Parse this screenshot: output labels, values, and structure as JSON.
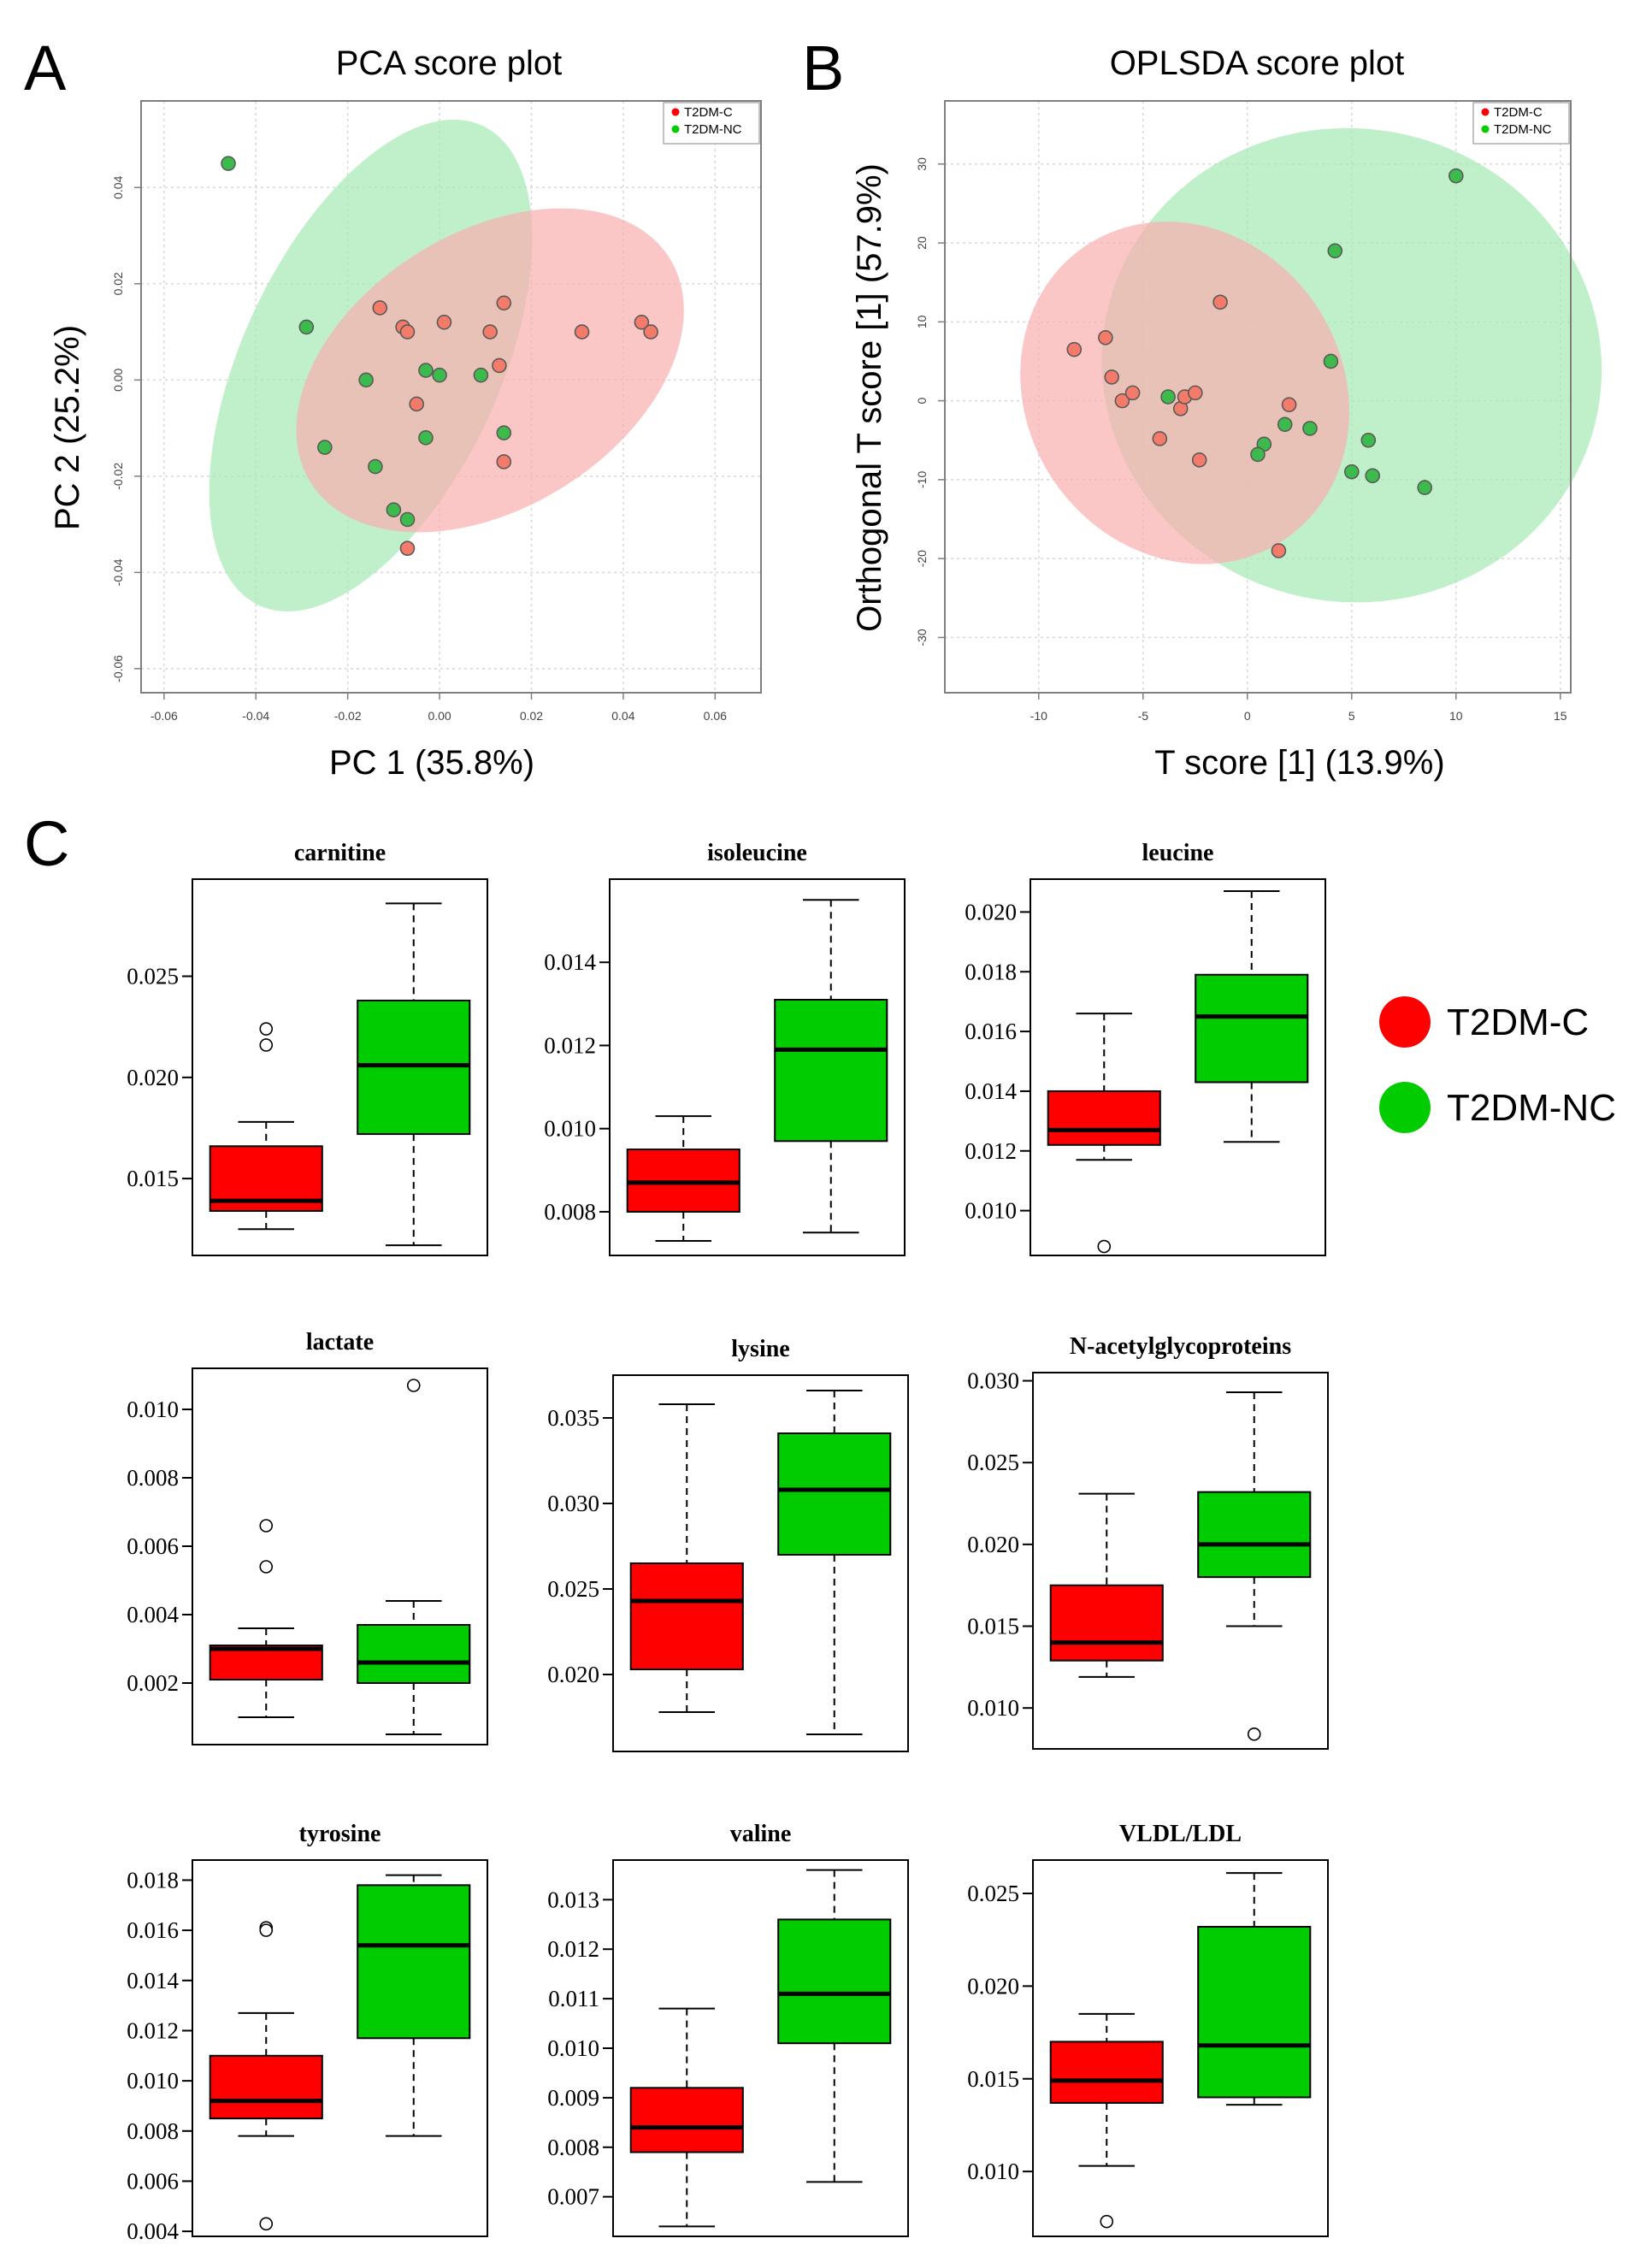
{
  "colors": {
    "c_group": "#ff0000",
    "nc_group": "#00cc00",
    "c_point": "#f47a6a",
    "nc_point": "#3cbb4c",
    "c_ellipse": "#f8b0b0",
    "nc_ellipse": "#a6eab6"
  },
  "groups": [
    "T2DM-C",
    "T2DM-NC"
  ],
  "panel_letters": [
    "A",
    "B",
    "C"
  ],
  "chart_data": [
    {
      "type": "scatter",
      "title": "PCA score plot",
      "xlabel": "PC 1 (35.8%)",
      "ylabel": "PC 2 (25.2%)",
      "xlim": [
        -0.065,
        0.07
      ],
      "ylim": [
        -0.065,
        0.058
      ],
      "xticks": [
        -0.06,
        -0.04,
        -0.02,
        0.0,
        0.02,
        0.04,
        0.06
      ],
      "xtick_labels": [
        "-0.06",
        "-0.04",
        "-0.02",
        "0.00",
        "0.02",
        "0.04",
        "0.06"
      ],
      "yticks": [
        -0.06,
        -0.04,
        -0.02,
        0.0,
        0.02,
        0.04
      ],
      "ytick_labels": [
        "-0.06",
        "-0.04",
        "-0.02",
        "0.00",
        "0.02",
        "0.04"
      ],
      "grid": true,
      "legend": [
        "T2DM-C",
        "T2DM-NC"
      ],
      "legend_position": "top-right",
      "ellipses": [
        {
          "group": "T2DM-NC",
          "cx": -0.015,
          "cy": 0.003,
          "rx": 0.028,
          "ry": 0.055,
          "angle": 25
        },
        {
          "group": "T2DM-C",
          "cx": 0.011,
          "cy": 0.002,
          "rx": 0.03,
          "ry": 0.044,
          "angle": 58
        }
      ],
      "series": [
        {
          "name": "T2DM-C",
          "points": [
            [
              -0.013,
              0.015
            ],
            [
              -0.008,
              0.011
            ],
            [
              -0.007,
              0.01
            ],
            [
              0.001,
              0.012
            ],
            [
              0.014,
              0.016
            ],
            [
              0.011,
              0.01
            ],
            [
              0.031,
              0.01
            ],
            [
              0.044,
              0.012
            ],
            [
              0.046,
              0.01
            ],
            [
              0.013,
              0.003
            ],
            [
              -0.005,
              -0.005
            ],
            [
              0.014,
              -0.017
            ],
            [
              -0.007,
              -0.035
            ]
          ]
        },
        {
          "name": "T2DM-NC",
          "points": [
            [
              -0.046,
              0.045
            ],
            [
              -0.029,
              0.011
            ],
            [
              -0.016,
              0.0
            ],
            [
              -0.003,
              0.002
            ],
            [
              0.0,
              0.001
            ],
            [
              0.009,
              0.001
            ],
            [
              -0.003,
              -0.012
            ],
            [
              0.014,
              -0.011
            ],
            [
              -0.025,
              -0.014
            ],
            [
              -0.014,
              -0.018
            ],
            [
              -0.01,
              -0.027
            ],
            [
              -0.007,
              -0.029
            ]
          ]
        }
      ]
    },
    {
      "type": "scatter",
      "title": "OPLSDA score plot",
      "xlabel": "T score [1] (13.9%)",
      "ylabel": "Orthogonal T score [1] (57.9%)",
      "xlim": [
        -14.5,
        15.5
      ],
      "ylim": [
        -37,
        38
      ],
      "xticks": [
        -10,
        -5,
        0,
        5,
        10,
        15
      ],
      "xtick_labels": [
        "-10",
        "-5",
        "0",
        "5",
        "10",
        "15"
      ],
      "yticks": [
        -30,
        -20,
        -10,
        0,
        10,
        20,
        30
      ],
      "ytick_labels": [
        "-30",
        "-20",
        "-10",
        "0",
        "10",
        "20",
        "30"
      ],
      "grid": true,
      "legend": [
        "T2DM-C",
        "T2DM-NC"
      ],
      "legend_position": "top-right",
      "ellipses": [
        {
          "group": "T2DM-NC",
          "cx": 5.0,
          "cy": 4.5,
          "rx": 12.0,
          "ry": 30.0,
          "angle": 10
        },
        {
          "group": "T2DM-C",
          "cx": -3.0,
          "cy": 1.0,
          "rx": 8.5,
          "ry": 20.0,
          "angle": 55
        }
      ],
      "series": [
        {
          "name": "T2DM-C",
          "points": [
            [
              -8.3,
              6.5
            ],
            [
              -6.8,
              8.0
            ],
            [
              -6.5,
              3.0
            ],
            [
              -6.0,
              0.0
            ],
            [
              -5.5,
              1.0
            ],
            [
              -4.2,
              -4.8
            ],
            [
              -3.2,
              -1.0
            ],
            [
              -3.0,
              0.5
            ],
            [
              -2.5,
              1.0
            ],
            [
              -2.3,
              -7.5
            ],
            [
              -1.3,
              12.5
            ],
            [
              2.0,
              -0.5
            ],
            [
              1.5,
              -19.0
            ]
          ]
        },
        {
          "name": "T2DM-NC",
          "points": [
            [
              -3.8,
              0.5
            ],
            [
              1.8,
              -3.0
            ],
            [
              3.0,
              -3.5
            ],
            [
              0.8,
              -5.5
            ],
            [
              0.5,
              -6.8
            ],
            [
              4.2,
              19.0
            ],
            [
              4.0,
              5.0
            ],
            [
              5.8,
              -5.0
            ],
            [
              5.0,
              -9.0
            ],
            [
              6.0,
              -9.5
            ],
            [
              8.5,
              -11.0
            ],
            [
              10.0,
              28.5
            ]
          ]
        }
      ]
    },
    {
      "type": "box",
      "title": "carnitine",
      "ylim": [
        0.0112,
        0.0298
      ],
      "yticks": [
        0.015,
        0.02,
        0.025
      ],
      "ytick_labels": [
        "0.015",
        "0.020",
        "0.025"
      ],
      "boxes": [
        {
          "group": "T2DM-C",
          "whisker_low": 0.0125,
          "q1": 0.0134,
          "median": 0.0139,
          "q3": 0.0166,
          "whisker_high": 0.0178,
          "outliers": [
            0.0216,
            0.0224
          ]
        },
        {
          "group": "T2DM-NC",
          "whisker_low": 0.0117,
          "q1": 0.0172,
          "median": 0.0206,
          "q3": 0.0238,
          "whisker_high": 0.0286,
          "outliers": []
        }
      ]
    },
    {
      "type": "box",
      "title": "isoleucine",
      "ylim": [
        0.00695,
        0.016
      ],
      "yticks": [
        0.008,
        0.01,
        0.012,
        0.014
      ],
      "ytick_labels": [
        "0.008",
        "0.010",
        "0.012",
        "0.014"
      ],
      "boxes": [
        {
          "group": "T2DM-C",
          "whisker_low": 0.0073,
          "q1": 0.008,
          "median": 0.0087,
          "q3": 0.0095,
          "whisker_high": 0.0103,
          "outliers": []
        },
        {
          "group": "T2DM-NC",
          "whisker_low": 0.0075,
          "q1": 0.0097,
          "median": 0.0119,
          "q3": 0.0131,
          "whisker_high": 0.0155,
          "outliers": []
        }
      ]
    },
    {
      "type": "box",
      "title": "leucine",
      "ylim": [
        0.0085,
        0.0211
      ],
      "yticks": [
        0.01,
        0.012,
        0.014,
        0.016,
        0.018,
        0.02
      ],
      "ytick_labels": [
        "0.010",
        "0.012",
        "0.014",
        "0.016",
        "0.018",
        "0.020"
      ],
      "boxes": [
        {
          "group": "T2DM-C",
          "whisker_low": 0.0117,
          "q1": 0.0122,
          "median": 0.0127,
          "q3": 0.014,
          "whisker_high": 0.0166,
          "outliers": [
            0.0088
          ]
        },
        {
          "group": "T2DM-NC",
          "whisker_low": 0.0123,
          "q1": 0.0143,
          "median": 0.0165,
          "q3": 0.0179,
          "whisker_high": 0.0207,
          "outliers": []
        }
      ]
    },
    {
      "type": "box",
      "title": "lactate",
      "ylim": [
        0.0002,
        0.0112
      ],
      "yticks": [
        0.002,
        0.004,
        0.006,
        0.008,
        0.01
      ],
      "ytick_labels": [
        "0.002",
        "0.004",
        "0.006",
        "0.008",
        "0.010"
      ],
      "boxes": [
        {
          "group": "T2DM-C",
          "whisker_low": 0.001,
          "q1": 0.0021,
          "median": 0.003,
          "q3": 0.0031,
          "whisker_high": 0.0036,
          "outliers": [
            0.0054,
            0.0066
          ]
        },
        {
          "group": "T2DM-NC",
          "whisker_low": 0.0005,
          "q1": 0.002,
          "median": 0.0026,
          "q3": 0.0037,
          "whisker_high": 0.0044,
          "outliers": [
            0.0107
          ]
        }
      ]
    },
    {
      "type": "box",
      "title": "lysine",
      "ylim": [
        0.0155,
        0.0375
      ],
      "yticks": [
        0.02,
        0.025,
        0.03,
        0.035
      ],
      "ytick_labels": [
        "0.020",
        "0.025",
        "0.030",
        "0.035"
      ],
      "boxes": [
        {
          "group": "T2DM-C",
          "whisker_low": 0.0178,
          "q1": 0.0203,
          "median": 0.0243,
          "q3": 0.0265,
          "whisker_high": 0.0358,
          "outliers": []
        },
        {
          "group": "T2DM-NC",
          "whisker_low": 0.0165,
          "q1": 0.027,
          "median": 0.0308,
          "q3": 0.0341,
          "whisker_high": 0.0366,
          "outliers": []
        }
      ]
    },
    {
      "type": "box",
      "title": "N-acetylglycoproteins",
      "ylim": [
        0.0075,
        0.0305
      ],
      "yticks": [
        0.01,
        0.015,
        0.02,
        0.025,
        0.03
      ],
      "ytick_labels": [
        "0.010",
        "0.015",
        "0.020",
        "0.025",
        "0.030"
      ],
      "boxes": [
        {
          "group": "T2DM-C",
          "whisker_low": 0.0119,
          "q1": 0.0129,
          "median": 0.014,
          "q3": 0.0175,
          "whisker_high": 0.0231,
          "outliers": []
        },
        {
          "group": "T2DM-NC",
          "whisker_low": 0.015,
          "q1": 0.018,
          "median": 0.02,
          "q3": 0.0232,
          "whisker_high": 0.0293,
          "outliers": [
            0.0084
          ]
        }
      ]
    },
    {
      "type": "box",
      "title": "tyrosine",
      "ylim": [
        0.0038,
        0.0188
      ],
      "yticks": [
        0.004,
        0.006,
        0.008,
        0.01,
        0.012,
        0.014,
        0.016,
        0.018
      ],
      "ytick_labels": [
        "0.004",
        "0.006",
        "0.008",
        "0.010",
        "0.012",
        "0.014",
        "0.016",
        "0.018"
      ],
      "boxes": [
        {
          "group": "T2DM-C",
          "whisker_low": 0.0078,
          "q1": 0.0085,
          "median": 0.0092,
          "q3": 0.011,
          "whisker_high": 0.0127,
          "outliers": [
            0.0161,
            0.016,
            0.0043
          ]
        },
        {
          "group": "T2DM-NC",
          "whisker_low": 0.0078,
          "q1": 0.0117,
          "median": 0.0154,
          "q3": 0.0178,
          "whisker_high": 0.0182,
          "outliers": []
        }
      ]
    },
    {
      "type": "box",
      "title": "valine",
      "ylim": [
        0.0062,
        0.0138
      ],
      "yticks": [
        0.007,
        0.008,
        0.009,
        0.01,
        0.011,
        0.012,
        0.013
      ],
      "ytick_labels": [
        "0.007",
        "0.008",
        "0.009",
        "0.010",
        "0.011",
        "0.012",
        "0.013"
      ],
      "boxes": [
        {
          "group": "T2DM-C",
          "whisker_low": 0.0064,
          "q1": 0.0079,
          "median": 0.0084,
          "q3": 0.0092,
          "whisker_high": 0.0108,
          "outliers": []
        },
        {
          "group": "T2DM-NC",
          "whisker_low": 0.0073,
          "q1": 0.0101,
          "median": 0.0111,
          "q3": 0.0126,
          "whisker_high": 0.0136,
          "outliers": []
        }
      ]
    },
    {
      "type": "box",
      "title": "VLDL/LDL",
      "ylim": [
        0.0065,
        0.0268
      ],
      "yticks": [
        0.01,
        0.015,
        0.02,
        0.025
      ],
      "ytick_labels": [
        "0.010",
        "0.015",
        "0.020",
        "0.025"
      ],
      "boxes": [
        {
          "group": "T2DM-C",
          "whisker_low": 0.0103,
          "q1": 0.0137,
          "median": 0.0149,
          "q3": 0.017,
          "whisker_high": 0.0185,
          "outliers": [
            0.0073
          ]
        },
        {
          "group": "T2DM-NC",
          "whisker_low": 0.0136,
          "q1": 0.014,
          "median": 0.0168,
          "q3": 0.0232,
          "whisker_high": 0.0261,
          "outliers": []
        }
      ]
    }
  ]
}
